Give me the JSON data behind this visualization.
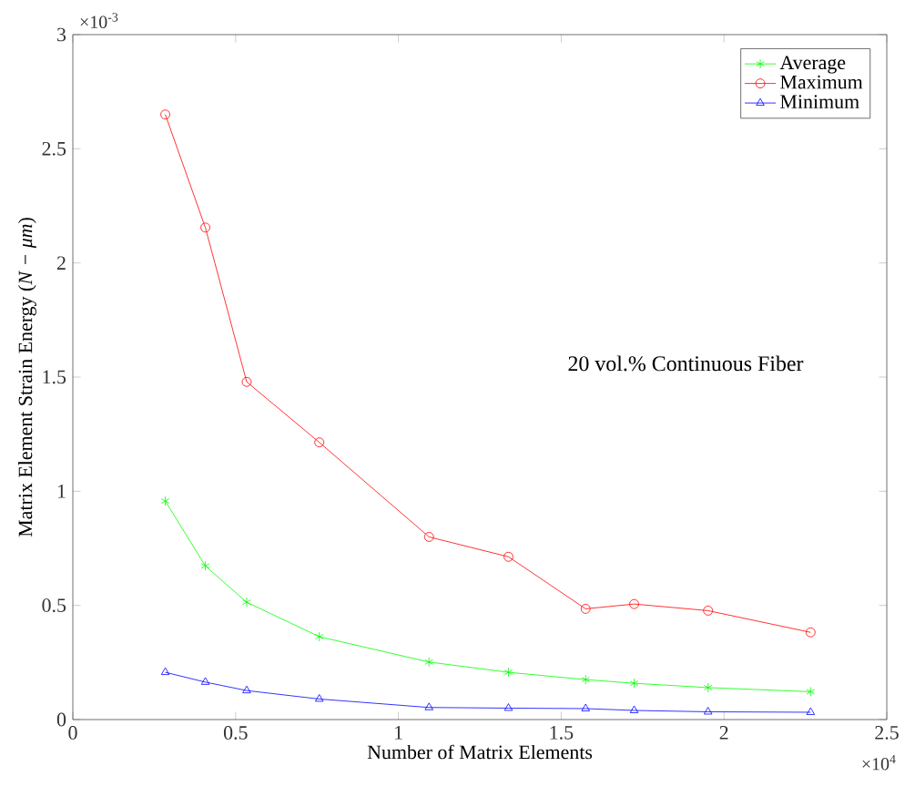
{
  "chart_data": {
    "type": "line",
    "xlabel": "Number of Matrix Elements",
    "ylabel": "Matrix Element Strain Energy (*N − μm*)",
    "annotations": [
      "20 vol.% Continuous Fiber",
      "×10$^{-3}$",
      "×10$^{4}$"
    ],
    "x": [
      0.284,
      0.407,
      0.534,
      0.757,
      1.094,
      1.338,
      1.575,
      1.724,
      1.951,
      2.266
    ],
    "series": [
      {
        "name": "Average",
        "color": "#00ff00",
        "marker": "cross",
        "values": [
          0.957,
          0.673,
          0.514,
          0.363,
          0.252,
          0.207,
          0.175,
          0.159,
          0.14,
          0.122
        ]
      },
      {
        "name": "Maximum",
        "color": "#ff0000",
        "marker": "circle",
        "values": [
          2.65,
          2.155,
          1.479,
          1.214,
          0.8,
          0.713,
          0.485,
          0.506,
          0.477,
          0.382
        ]
      },
      {
        "name": "Minimum",
        "color": "#0000ff",
        "marker": "triangle",
        "values": [
          0.207,
          0.164,
          0.127,
          0.09,
          0.053,
          0.05,
          0.048,
          0.04,
          0.034,
          0.032
        ]
      }
    ],
    "xlim": [
      0,
      2.5
    ],
    "ylim": [
      0,
      3
    ],
    "xticks": [
      0,
      0.5,
      1,
      1.5,
      2,
      2.5
    ],
    "yticks": [
      0,
      0.5,
      1,
      1.5,
      2,
      2.5,
      3
    ],
    "grid": false,
    "legend": "top right",
    "line_style": "solid"
  }
}
